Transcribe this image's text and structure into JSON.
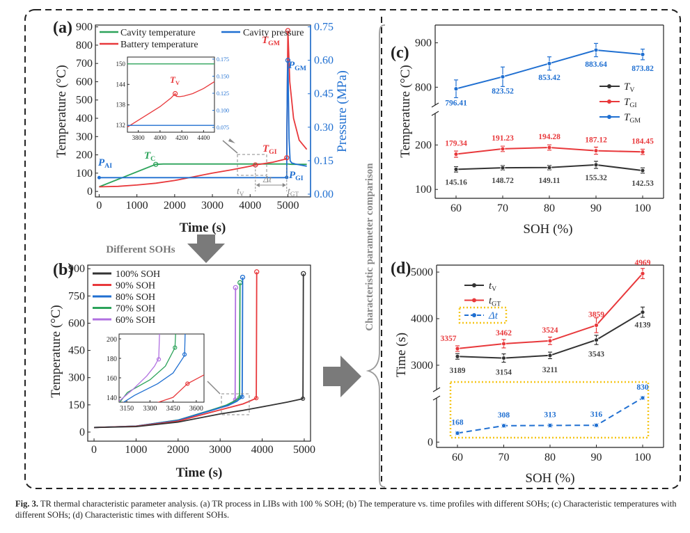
{
  "caption": {
    "label": "Fig. 3.",
    "text": "TR thermal characteristic parameter analysis. (a) TR process in LIBs with 100 % SOH; (b) The temperature vs. time profiles with different SOHs; (c) Characteristic temperatures with different SOHs; (d) Characteristic times with different SOHs."
  },
  "arrows": {
    "different_sohs": "Different SOHs",
    "comparison": "Characteristic parameter comparison"
  },
  "colors": {
    "green": "#2ca35a",
    "red": "#e8383b",
    "blue": "#1f6fd1",
    "black": "#333333",
    "purple": "#b070e0",
    "orange": "#f5c518",
    "gray": "#7f7f7f"
  },
  "chart_data": [
    {
      "id": "a",
      "panel_label": "(a)",
      "type": "line",
      "xlabel": "Time (s)",
      "ylabel": "Temperature (°C)",
      "y2label": "Pressure (MPa)",
      "xlim": [
        -100,
        5600
      ],
      "ylim": [
        -30,
        910
      ],
      "y2lim": [
        -0.0125,
        0.758
      ],
      "xticks": [
        "0",
        "1000",
        "2000",
        "3000",
        "4000",
        "5000"
      ],
      "yticks": [
        "0",
        "100",
        "200",
        "300",
        "400",
        "500",
        "600",
        "700",
        "800",
        "900"
      ],
      "y2ticks": [
        "0.00",
        "0.15",
        "0.30",
        "0.45",
        "0.60",
        "0.75"
      ],
      "legend": [
        "Cavity temperature",
        "Battery temperature",
        "Cavity pressure"
      ],
      "series": [
        {
          "name": "Cavity temperature",
          "color": "green",
          "axis": "y",
          "x": [
            0,
            1500,
            1700,
            5000,
            5100,
            5500
          ],
          "y": [
            25,
            148,
            150,
            150,
            148,
            148
          ]
        },
        {
          "name": "Battery temperature",
          "color": "red",
          "axis": "y",
          "x": [
            0,
            500,
            1000,
            1500,
            2000,
            2500,
            3000,
            3500,
            4000,
            4139,
            4300,
            4600,
            4900,
            4969,
            4985,
            5000,
            5050,
            5150,
            5300,
            5500
          ],
          "y": [
            25,
            28,
            35,
            45,
            60,
            80,
            100,
            118,
            138,
            145,
            150,
            160,
            175,
            184,
            600,
            880,
            600,
            400,
            280,
            230
          ]
        },
        {
          "name": "Cavity pressure",
          "color": "blue",
          "axis": "y2",
          "x": [
            0,
            4900,
            4969,
            4975,
            4990,
            5000,
            5010,
            5030,
            5060,
            5100,
            5200,
            5500
          ],
          "y": [
            0.074,
            0.074,
            0.075,
            0.3,
            0.55,
            0.6,
            0.5,
            0.25,
            0.15,
            0.14,
            0.135,
            0.125
          ]
        }
      ],
      "annotations": [
        {
          "text": "T",
          "sub": "GM",
          "x": 4970,
          "y": 875,
          "color": "red"
        },
        {
          "text": "P",
          "sub": "GM",
          "x": 4990,
          "y_pressure": 0.6,
          "color": "blue"
        },
        {
          "text": "T",
          "sub": "C",
          "x": 1500,
          "y": 148,
          "color": "green"
        },
        {
          "text": "T",
          "sub": "GI",
          "x": 4969,
          "y": 184,
          "color": "red"
        },
        {
          "text": "P",
          "sub": "AI",
          "x": 0,
          "y_pressure": 0.075,
          "color": "blue"
        },
        {
          "text": "P",
          "sub": "GI",
          "x": 4969,
          "y_pressure": 0.075,
          "color": "blue"
        },
        {
          "text": "t",
          "sub": "V",
          "x": 4139
        },
        {
          "text": "t",
          "sub": "GT",
          "x": 4969
        },
        {
          "text": "Δt",
          "x": 4550
        }
      ],
      "inset": {
        "xticks": [
          "3800",
          "4000",
          "4200",
          "4400"
        ],
        "yticks": [
          "132",
          "138",
          "144",
          "150"
        ],
        "y2ticks": [
          "0.075",
          "0.100",
          "0.125",
          "0.150",
          "0.175"
        ],
        "xlim": [
          3700,
          4500
        ],
        "ylim": [
          130,
          152
        ],
        "y2lim": [
          0.068,
          0.178
        ],
        "label": {
          "text": "T",
          "sub": "V"
        },
        "series": [
          {
            "color": "green",
            "axis": "y",
            "x": [
              3700,
              4500
            ],
            "y": [
              150,
              150
            ]
          },
          {
            "color": "red",
            "axis": "y",
            "x": [
              3700,
              3850,
              4000,
              4100,
              4139,
              4150,
              4180,
              4220,
              4300,
              4400,
              4500
            ],
            "y": [
              131.5,
              134.5,
              137.5,
              140,
              141.3,
              140.5,
              140.4,
              140.6,
              141.3,
              142.8,
              144.8
            ]
          },
          {
            "color": "blue",
            "axis": "y2",
            "x": [
              3700,
              4500
            ],
            "y": [
              0.078,
              0.078
            ]
          }
        ]
      }
    },
    {
      "id": "b",
      "panel_label": "(b)",
      "type": "line",
      "xlabel": "Time (s)",
      "ylabel": "Temperature (°C)",
      "xlim": [
        -150,
        5150
      ],
      "ylim": [
        -50,
        920
      ],
      "xticks": [
        "0",
        "1000",
        "2000",
        "3000",
        "4000",
        "5000"
      ],
      "yticks": [
        "0",
        "150",
        "300",
        "450",
        "600",
        "750",
        "900"
      ],
      "legend": [
        "100% SOH",
        "90% SOH",
        "80% SOH",
        "70% SOH",
        "60% SOH"
      ],
      "series": [
        {
          "name": "100% SOH",
          "color": "black",
          "x": [
            0,
            1000,
            2000,
            3000,
            3500,
            4139,
            4600,
            4969,
            4975,
            4980
          ],
          "y": [
            25,
            30,
            55,
            100,
            118,
            145,
            165,
            184,
            500,
            873
          ]
        },
        {
          "name": "90% SOH",
          "color": "red",
          "x": [
            0,
            1000,
            2000,
            2800,
            3300,
            3543,
            3700,
            3859,
            3865,
            3870
          ],
          "y": [
            25,
            32,
            60,
            110,
            140,
            155,
            170,
            187,
            500,
            883
          ]
        },
        {
          "name": "80% SOH",
          "color": "blue",
          "x": [
            0,
            1000,
            2000,
            2800,
            3211,
            3400,
            3524,
            3530,
            3535
          ],
          "y": [
            25,
            33,
            65,
            120,
            149,
            170,
            194,
            500,
            853
          ]
        },
        {
          "name": "70% SOH",
          "color": "green",
          "x": [
            0,
            1000,
            2000,
            2800,
            3154,
            3350,
            3462,
            3468,
            3473
          ],
          "y": [
            25,
            33,
            66,
            122,
            149,
            172,
            191,
            500,
            823
          ]
        },
        {
          "name": "60% SOH",
          "color": "purple",
          "x": [
            0,
            1000,
            2000,
            2800,
            3189,
            3300,
            3357,
            3362,
            3366
          ],
          "y": [
            25,
            33,
            66,
            122,
            145,
            165,
            179,
            500,
            796
          ]
        }
      ],
      "inset": {
        "xticks": [
          "3150",
          "3300",
          "3450",
          "3600"
        ],
        "yticks": [
          "140",
          "160",
          "180",
          "200"
        ],
        "xlim": [
          3100,
          3650
        ],
        "ylim": [
          135,
          205
        ]
      }
    },
    {
      "id": "c",
      "panel_label": "(c)",
      "type": "line",
      "xlabel": "SOH (%)",
      "ylabel": "Temperature (°C)",
      "categories": [
        "60",
        "70",
        "80",
        "90",
        "100"
      ],
      "yticks_top": [
        "800",
        "900"
      ],
      "yticks_bottom": [
        "100",
        "200"
      ],
      "ylim_top": [
        730,
        940
      ],
      "ylim_bottom": [
        80,
        260
      ],
      "legend": [
        {
          "text": "T",
          "sub": "V"
        },
        {
          "text": "T",
          "sub": "GI"
        },
        {
          "text": "T",
          "sub": "GM"
        }
      ],
      "series": [
        {
          "name": "T_V",
          "color": "black",
          "values": [
            145.16,
            148.72,
            149.11,
            155.32,
            142.53
          ],
          "labels": [
            "145.16",
            "148.72",
            "149.11",
            "155.32",
            "142.53"
          ],
          "err": [
            6,
            5,
            5,
            8,
            6
          ]
        },
        {
          "name": "T_GI",
          "color": "red",
          "values": [
            179.34,
            191.23,
            194.28,
            187.12,
            184.45
          ],
          "labels": [
            "179.34",
            "191.23",
            "194.28",
            "187.12",
            "184.45"
          ],
          "err": [
            7,
            6,
            6,
            8,
            6
          ]
        },
        {
          "name": "T_GM",
          "color": "blue",
          "values": [
            796.41,
            823.52,
            853.42,
            883.64,
            873.82
          ],
          "labels": [
            "796.41",
            "823.52",
            "853.42",
            "883.64",
            "873.82"
          ],
          "err": [
            20,
            22,
            15,
            15,
            12
          ]
        }
      ]
    },
    {
      "id": "d",
      "panel_label": "(d)",
      "type": "line",
      "xlabel": "SOH (%)",
      "ylabel": "Time (s)",
      "categories": [
        "60",
        "70",
        "80",
        "90",
        "100"
      ],
      "yticks_top": [
        "3000",
        "4000",
        "5000"
      ],
      "yticks_bottom": [
        "0"
      ],
      "ylim_top": [
        2550,
        5150
      ],
      "ylim_bottom": [
        -100,
        1050
      ],
      "legend": [
        {
          "text": "t",
          "sub": "V"
        },
        {
          "text": "t",
          "sub": "GT"
        },
        {
          "text": "Δt",
          "sub": ""
        }
      ],
      "series": [
        {
          "name": "t_V",
          "color": "black",
          "values": [
            3189,
            3154,
            3211,
            3543,
            4139
          ],
          "labels": [
            "3189",
            "3154",
            "3211",
            "3543",
            "4139"
          ],
          "err": [
            60,
            90,
            70,
            100,
            110
          ]
        },
        {
          "name": "t_GT",
          "color": "red",
          "values": [
            3357,
            3462,
            3524,
            3859,
            4969
          ],
          "labels": [
            "3357",
            "3462",
            "3524",
            "3859",
            "4969"
          ],
          "err": [
            60,
            90,
            80,
            160,
            110
          ]
        },
        {
          "name": "Δt",
          "color": "blue",
          "dashed": true,
          "values": [
            168,
            308,
            313,
            316,
            830
          ],
          "labels": [
            "168",
            "308",
            "313",
            "316",
            "830"
          ],
          "err": [
            30,
            30,
            30,
            30,
            30
          ]
        }
      ]
    }
  ]
}
